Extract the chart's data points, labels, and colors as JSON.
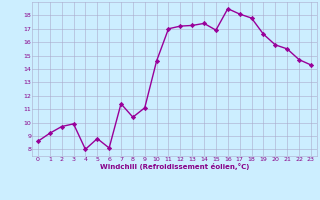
{
  "x": [
    0,
    1,
    2,
    3,
    4,
    5,
    6,
    7,
    8,
    9,
    10,
    11,
    12,
    13,
    14,
    15,
    16,
    17,
    18,
    19,
    20,
    21,
    22,
    23
  ],
  "y": [
    8.6,
    9.2,
    9.7,
    9.9,
    8.0,
    8.8,
    8.1,
    11.4,
    10.4,
    11.1,
    14.6,
    17.0,
    17.2,
    17.25,
    17.4,
    16.9,
    18.5,
    18.1,
    17.8,
    16.6,
    15.8,
    15.5,
    14.7,
    14.3
  ],
  "line_color": "#990099",
  "marker": "D",
  "markersize": 2.2,
  "linewidth": 1.0,
  "bg_color": "#cceeff",
  "grid_color": "#aaaacc",
  "xlabel": "Windchill (Refroidissement éolien,°C)",
  "tick_color": "#880088",
  "xlim": [
    -0.5,
    23.5
  ],
  "ylim": [
    7.5,
    19.0
  ],
  "yticks": [
    8,
    9,
    10,
    11,
    12,
    13,
    14,
    15,
    16,
    17,
    18
  ],
  "xticks": [
    0,
    1,
    2,
    3,
    4,
    5,
    6,
    7,
    8,
    9,
    10,
    11,
    12,
    13,
    14,
    15,
    16,
    17,
    18,
    19,
    20,
    21,
    22,
    23
  ],
  "figsize": [
    3.2,
    2.0
  ],
  "dpi": 100
}
